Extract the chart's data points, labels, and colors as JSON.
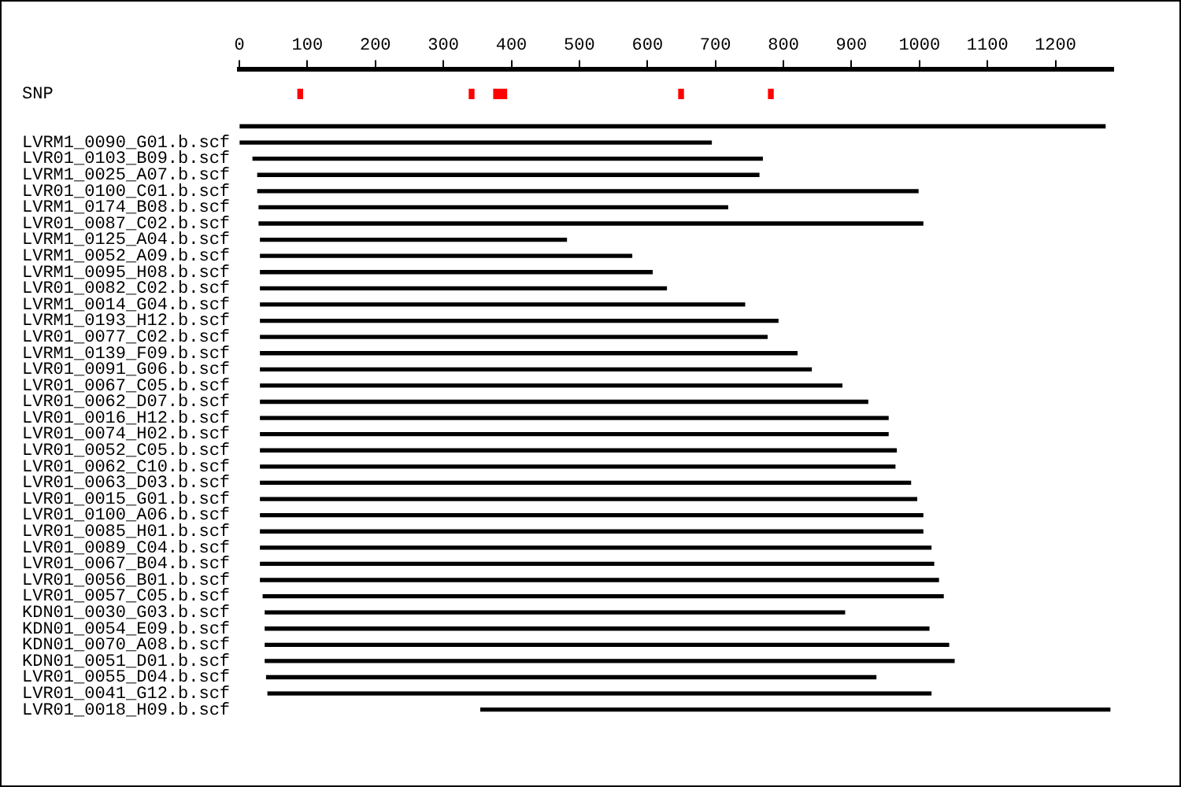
{
  "chart_data": {
    "type": "bar",
    "orientation": "horizontal",
    "legend": false,
    "grid": false,
    "categories": [
      null,
      "SNP",
      null,
      null,
      "LVRM1_0090_G01.b.scf",
      "LVR01_0103_B09.b.scf",
      "LVRM1_0025_A07.b.scf",
      "LVR01_0100_C01.b.scf",
      "LVRM1_0174_B08.b.scf",
      "LVR01_0087_C02.b.scf",
      "LVRM1_0125_A04.b.scf",
      "LVRM1_0052_A09.b.scf",
      "LVRM1_0095_H08.b.scf",
      "LVR01_0082_C02.b.scf",
      "LVRM1_0014_G04.b.scf",
      "LVRM1_0193_H12.b.scf",
      "LVR01_0077_C02.b.scf",
      "LVRM1_0139_F09.b.scf",
      "LVR01_0091_G06.b.scf",
      "LVR01_0067_C05.b.scf",
      "LVR01_0062_D07.b.scf",
      "LVR01_0016_H12.b.scf",
      "LVR01_0074_H02.b.scf",
      "LVR01_0052_C05.b.scf",
      "LVR01_0062_C10.b.scf",
      "LVR01_0063_D03.b.scf",
      "LVR01_0015_G01.b.scf",
      "LVR01_0100_A06.b.scf",
      "LVR01_0085_H01.b.scf",
      "LVR01_0089_C04.b.scf",
      "LVR01_0067_B04.b.scf",
      "LVR01_0056_B01.b.scf",
      "LVR01_0057_C05.b.scf",
      "KDN01_0030_G03.b.scf",
      "KDN01_0054_E09.b.scf",
      "KDN01_0070_A08.b.scf",
      "KDN01_0051_D01.b.scf",
      "LVR01_0055_D04.b.scf",
      "LVR01_0041_G12.b.scf",
      "LVR01_0018_H09.b.scf"
    ],
    "xlim": [
      0,
      1285
    ],
    "xticks": [
      0,
      100,
      200,
      300,
      400,
      500,
      600,
      700,
      800,
      900,
      1000,
      1100,
      1200
    ],
    "series": [
      {
        "color": "#000000",
        "base": [
          null,
          null,
          null,
          0,
          0,
          20,
          27,
          27,
          29,
          29,
          31,
          31,
          31,
          31,
          31,
          31,
          31,
          31,
          31,
          31,
          31,
          31,
          31,
          31,
          31,
          31,
          31,
          31,
          31,
          31,
          31,
          31,
          35,
          38,
          38,
          38,
          38,
          40,
          42,
          355
        ],
        "values": [
          null,
          null,
          null,
          1273,
          694,
          749,
          737,
          971,
          689,
          976,
          450,
          546,
          576,
          597,
          712,
          761,
          745,
          789,
          810,
          855,
          893,
          923,
          923,
          935,
          933,
          956,
          965,
          974,
          974,
          986,
          990,
          997,
          1000,
          852,
          976,
          1005,
          1013,
          896,
          975,
          925
        ]
      },
      {
        "color": "#ff0000",
        "base": [
          null,
          86,
          null,
          null,
          null,
          null,
          null,
          null,
          null,
          null,
          null,
          null,
          null,
          null,
          null,
          null,
          null,
          null,
          null,
          null,
          null,
          null,
          null,
          null,
          null,
          null,
          null,
          null,
          null,
          null,
          null,
          null,
          null,
          null,
          null,
          null,
          null,
          null,
          null,
          null
        ],
        "values": [
          null,
          7,
          null,
          null,
          null,
          null,
          null,
          null,
          null,
          null,
          null,
          null,
          null,
          null,
          null,
          null,
          null,
          null,
          null,
          null,
          null,
          null,
          null,
          null,
          null,
          null,
          null,
          null,
          null,
          null,
          null,
          null,
          null,
          null,
          null,
          null,
          null,
          null,
          null,
          null
        ]
      },
      {
        "color": "#ff0000",
        "base": [
          null,
          338,
          null,
          null,
          null,
          null,
          null,
          null,
          null,
          null,
          null,
          null,
          null,
          null,
          null,
          null,
          null,
          null,
          null,
          null,
          null,
          null,
          null,
          null,
          null,
          null,
          null,
          null,
          null,
          null,
          null,
          null,
          null,
          null,
          null,
          null,
          null,
          null,
          null,
          null
        ],
        "values": [
          null,
          7,
          null,
          null,
          null,
          null,
          null,
          null,
          null,
          null,
          null,
          null,
          null,
          null,
          null,
          null,
          null,
          null,
          null,
          null,
          null,
          null,
          null,
          null,
          null,
          null,
          null,
          null,
          null,
          null,
          null,
          null,
          null,
          null,
          null,
          null,
          null,
          null,
          null,
          null
        ]
      },
      {
        "color": "#ff0000",
        "base": [
          null,
          374,
          null,
          null,
          null,
          null,
          null,
          null,
          null,
          null,
          null,
          null,
          null,
          null,
          null,
          null,
          null,
          null,
          null,
          null,
          null,
          null,
          null,
          null,
          null,
          null,
          null,
          null,
          null,
          null,
          null,
          null,
          null,
          null,
          null,
          null,
          null,
          null,
          null,
          null
        ],
        "values": [
          null,
          19,
          null,
          null,
          null,
          null,
          null,
          null,
          null,
          null,
          null,
          null,
          null,
          null,
          null,
          null,
          null,
          null,
          null,
          null,
          null,
          null,
          null,
          null,
          null,
          null,
          null,
          null,
          null,
          null,
          null,
          null,
          null,
          null,
          null,
          null,
          null,
          null,
          null,
          null
        ]
      },
      {
        "color": "#ff0000",
        "base": [
          null,
          646,
          null,
          null,
          null,
          null,
          null,
          null,
          null,
          null,
          null,
          null,
          null,
          null,
          null,
          null,
          null,
          null,
          null,
          null,
          null,
          null,
          null,
          null,
          null,
          null,
          null,
          null,
          null,
          null,
          null,
          null,
          null,
          null,
          null,
          null,
          null,
          null,
          null,
          null
        ],
        "values": [
          null,
          7,
          null,
          null,
          null,
          null,
          null,
          null,
          null,
          null,
          null,
          null,
          null,
          null,
          null,
          null,
          null,
          null,
          null,
          null,
          null,
          null,
          null,
          null,
          null,
          null,
          null,
          null,
          null,
          null,
          null,
          null,
          null,
          null,
          null,
          null,
          null,
          null,
          null,
          null
        ]
      },
      {
        "color": "#ff0000",
        "base": [
          null,
          778,
          null,
          null,
          null,
          null,
          null,
          null,
          null,
          null,
          null,
          null,
          null,
          null,
          null,
          null,
          null,
          null,
          null,
          null,
          null,
          null,
          null,
          null,
          null,
          null,
          null,
          null,
          null,
          null,
          null,
          null,
          null,
          null,
          null,
          null,
          null,
          null,
          null,
          null
        ],
        "values": [
          null,
          7,
          null,
          null,
          null,
          null,
          null,
          null,
          null,
          null,
          null,
          null,
          null,
          null,
          null,
          null,
          null,
          null,
          null,
          null,
          null,
          null,
          null,
          null,
          null,
          null,
          null,
          null,
          null,
          null,
          null,
          null,
          null,
          null,
          null,
          null,
          null,
          null,
          null,
          null
        ]
      }
    ]
  }
}
